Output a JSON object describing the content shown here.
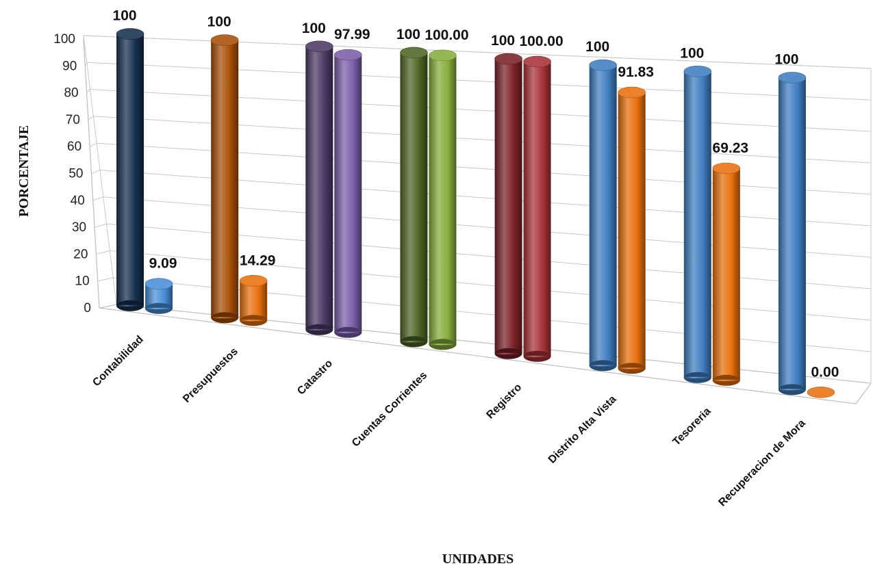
{
  "chart_data": {
    "type": "bar",
    "style": "3d-cylinder",
    "xlabel": "UNIDADES",
    "ylabel": "PORCENTAJE",
    "ylim": [
      0,
      100
    ],
    "yticks": [
      "0",
      "10",
      "20",
      "30",
      "40",
      "50",
      "60",
      "70",
      "80",
      "90",
      "100"
    ],
    "grid": true,
    "legend": "none",
    "categories": [
      "Contabilidad",
      "Presupuestos",
      "Catastro",
      "Cuentas Corrientes",
      "Registro",
      "Distrito Alta Vista",
      "Tesoreria",
      "Recuperacion de Mora"
    ],
    "series": [
      {
        "values": [
          100,
          100,
          100,
          100,
          100,
          100,
          100,
          100
        ],
        "labels": [
          "100",
          "100",
          "100",
          "100",
          "100",
          "100",
          "100",
          "100"
        ],
        "colors": [
          "#16304f",
          "#a84f08",
          "#4a3a64",
          "#4e6525",
          "#7a2226",
          "#3f7ec0",
          "#3f7ec0",
          "#3f7ec0"
        ]
      },
      {
        "values": [
          9.09,
          14.29,
          97.99,
          100.0,
          100.0,
          91.83,
          69.23,
          0.0
        ],
        "labels": [
          "9.09",
          "14.29",
          "97.99",
          "100.00",
          "100.00",
          "91.83",
          "69.23",
          "0.00"
        ],
        "colors": [
          "#4a8fd8",
          "#e8700d",
          "#7a5ea8",
          "#86ad3c",
          "#a83338",
          "#e8700d",
          "#e8700d",
          "#e8700d"
        ]
      }
    ]
  }
}
